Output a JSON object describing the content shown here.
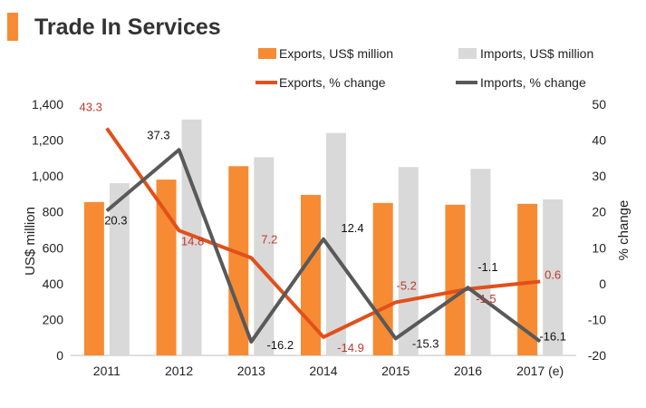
{
  "title": "Trade In Services",
  "colors": {
    "exports_bar": "#F68B33",
    "imports_bar": "#D9D9D9",
    "exports_line": "#E1501B",
    "imports_line": "#595959",
    "exports_label": "#C0392B",
    "imports_label": "#111111",
    "title_accent": "#F68B33"
  },
  "chart_data": {
    "type": "bar+line",
    "title": "Trade In Services",
    "categories": [
      "2011",
      "2012",
      "2013",
      "2014",
      "2015",
      "2016",
      "2017 (e)"
    ],
    "left_axis": {
      "label": "US$ million",
      "min": 0,
      "max": 1400,
      "step": 200,
      "ticks": [
        "0",
        "200",
        "400",
        "600",
        "800",
        "1,000",
        "1,200",
        "1,400"
      ]
    },
    "right_axis": {
      "label": "% change",
      "min": -20,
      "max": 50,
      "step": 10,
      "ticks": [
        "-20",
        "-10",
        "0",
        "10",
        "20",
        "30",
        "40",
        "50"
      ]
    },
    "series": [
      {
        "name": "Exports, US$ million",
        "type": "bar",
        "axis": "left",
        "values": [
          855,
          980,
          1055,
          895,
          850,
          840,
          845
        ]
      },
      {
        "name": "Imports, US$ million",
        "type": "bar",
        "axis": "left",
        "values": [
          960,
          1315,
          1105,
          1240,
          1050,
          1040,
          870
        ]
      },
      {
        "name": "Exports, % change",
        "type": "line",
        "axis": "right",
        "values": [
          43.3,
          14.8,
          7.2,
          -14.9,
          -5.2,
          -1.5,
          0.6
        ],
        "labels": [
          "43.3",
          "14.8",
          "7.2",
          "-14.9",
          "-5.2",
          "-1.5",
          "0.6"
        ]
      },
      {
        "name": "Imports, % change",
        "type": "line",
        "axis": "right",
        "values": [
          20.3,
          37.3,
          -16.2,
          12.4,
          -15.3,
          -1.1,
          -16.1
        ],
        "labels": [
          "20.3",
          "37.3",
          "-16.2",
          "12.4",
          "-15.3",
          "-1.1",
          "-16.1"
        ]
      }
    ],
    "legend": [
      "Exports, US$ million",
      "Imports, US$ million",
      "Exports, % change",
      "Imports, % change"
    ],
    "legend_position": "top"
  }
}
